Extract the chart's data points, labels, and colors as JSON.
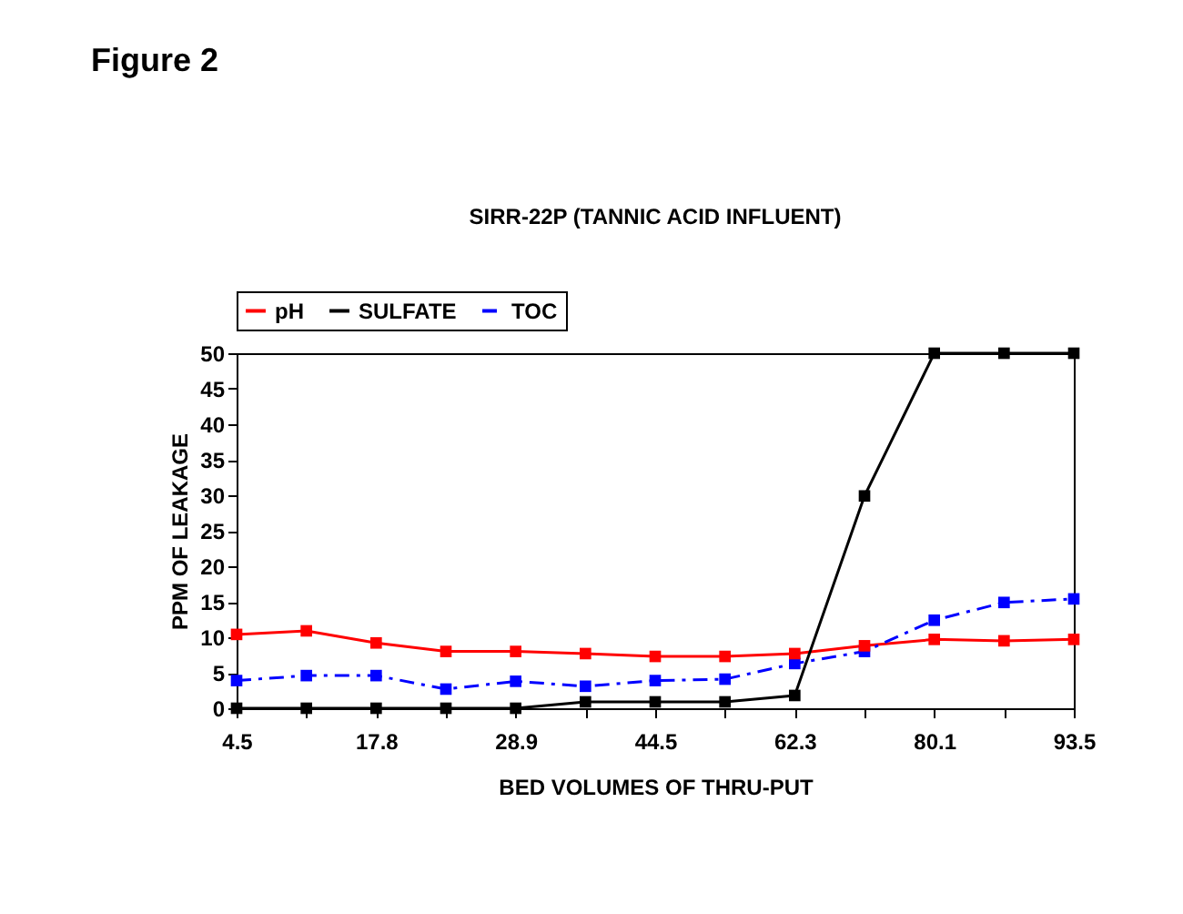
{
  "chart_data": {
    "type": "line",
    "title": "Figure 2",
    "subtitle": "SIRR-22P (TANNIC ACID INFLUENT)",
    "xlabel": "BED VOLUMES OF THRU-PUT",
    "ylabel": "PPM OF LEAKAGE",
    "categories": [
      "4.5",
      null,
      "17.8",
      null,
      "28.9",
      null,
      "44.5",
      null,
      "62.3",
      null,
      "80.1",
      null,
      "93.5"
    ],
    "series": [
      {
        "name": "pH",
        "color": "#ff0000",
        "line_style": "solid",
        "values": [
          10.4,
          10.9,
          9.2,
          8.0,
          8.0,
          7.7,
          7.3,
          7.3,
          7.7,
          8.8,
          9.7,
          9.5,
          9.7
        ]
      },
      {
        "name": "SULFATE",
        "color": "#000000",
        "line_style": "solid",
        "values": [
          0,
          0,
          0,
          0,
          0,
          0.9,
          0.9,
          0.9,
          1.8,
          29.9,
          50,
          50,
          50
        ]
      },
      {
        "name": "TOC",
        "color": "#0000ff",
        "line_style": "dashed",
        "values": [
          3.9,
          4.6,
          4.6,
          2.7,
          3.8,
          3.1,
          3.9,
          4.1,
          6.3,
          8.0,
          12.4,
          14.9,
          15.4
        ]
      }
    ],
    "ylim": [
      0,
      50
    ],
    "yticks": [
      0,
      5,
      10,
      15,
      20,
      25,
      30,
      35,
      40,
      45,
      50
    ],
    "grid": false,
    "legend": "top",
    "marker": "square"
  }
}
